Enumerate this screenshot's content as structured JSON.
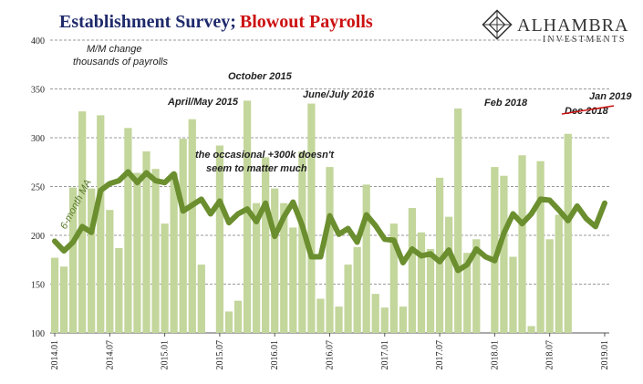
{
  "title_part1": "Establishment Survey;",
  "title_part2": "Blowout Payrolls",
  "logo": {
    "name": "ALHAMBRA",
    "sub": "INVESTMENTS"
  },
  "colors": {
    "bar": "#c3d69b",
    "ma": "#6b8e2f",
    "title1": "#1f2a6b",
    "title2": "#cc1111",
    "grid": "#9a9a9a",
    "redline": "#cc1111"
  },
  "chart_data": {
    "type": "bar",
    "ylim": [
      100,
      400
    ],
    "y_ticks": [
      100,
      150,
      200,
      250,
      300,
      350,
      400
    ],
    "x_tick_labels": [
      "2014.01",
      "2014.07",
      "2015.01",
      "2015.07",
      "2016.01",
      "2016.07",
      "2017.01",
      "2017.07",
      "2018.01",
      "2018.07",
      "2019.01"
    ],
    "gaps_after_index": [
      16,
      45,
      70,
      80
    ],
    "series": [
      {
        "name": "M/M change",
        "type": "bar",
        "values": [
          177,
          168,
          249,
          327,
          248,
          323,
          226,
          187,
          310,
          264,
          286,
          268,
          212,
          264,
          299,
          319,
          170,
          292,
          122,
          133,
          338,
          233,
          280,
          248,
          233,
          208,
          286,
          335,
          135,
          270,
          127,
          170,
          188,
          252,
          140,
          126,
          212,
          127,
          228,
          203,
          186,
          259,
          219,
          330,
          182,
          196,
          270,
          261,
          178,
          282,
          107,
          276,
          196,
          221,
          304
        ]
      },
      {
        "name": "6-month MA",
        "type": "line",
        "values": [
          194,
          184,
          193,
          209,
          203,
          246,
          253,
          256,
          265,
          254,
          264,
          256,
          254,
          263,
          225,
          231,
          237,
          222,
          235,
          213,
          222,
          227,
          214,
          233,
          199,
          219,
          234,
          210,
          178,
          178,
          220,
          201,
          207,
          193,
          221,
          210,
          196,
          195,
          172,
          186,
          179,
          181,
          173,
          185,
          164,
          170,
          186,
          178,
          174,
          202,
          222,
          212,
          222,
          237,
          236,
          226,
          215,
          230,
          217,
          209,
          233
        ]
      }
    ],
    "annotations": [
      {
        "text": "M/M change"
      },
      {
        "text": "thousands of payrolls"
      },
      {
        "text": "October 2015"
      },
      {
        "text": "April/May 2015"
      },
      {
        "text": "June/July 2016"
      },
      {
        "text": "the occasional +300k doesn't"
      },
      {
        "text": "seem to matter much"
      },
      {
        "text": "Feb 2018"
      },
      {
        "text": "Jan 2019"
      },
      {
        "text": "Dec 2018"
      },
      {
        "text": "6-month MA"
      }
    ]
  }
}
